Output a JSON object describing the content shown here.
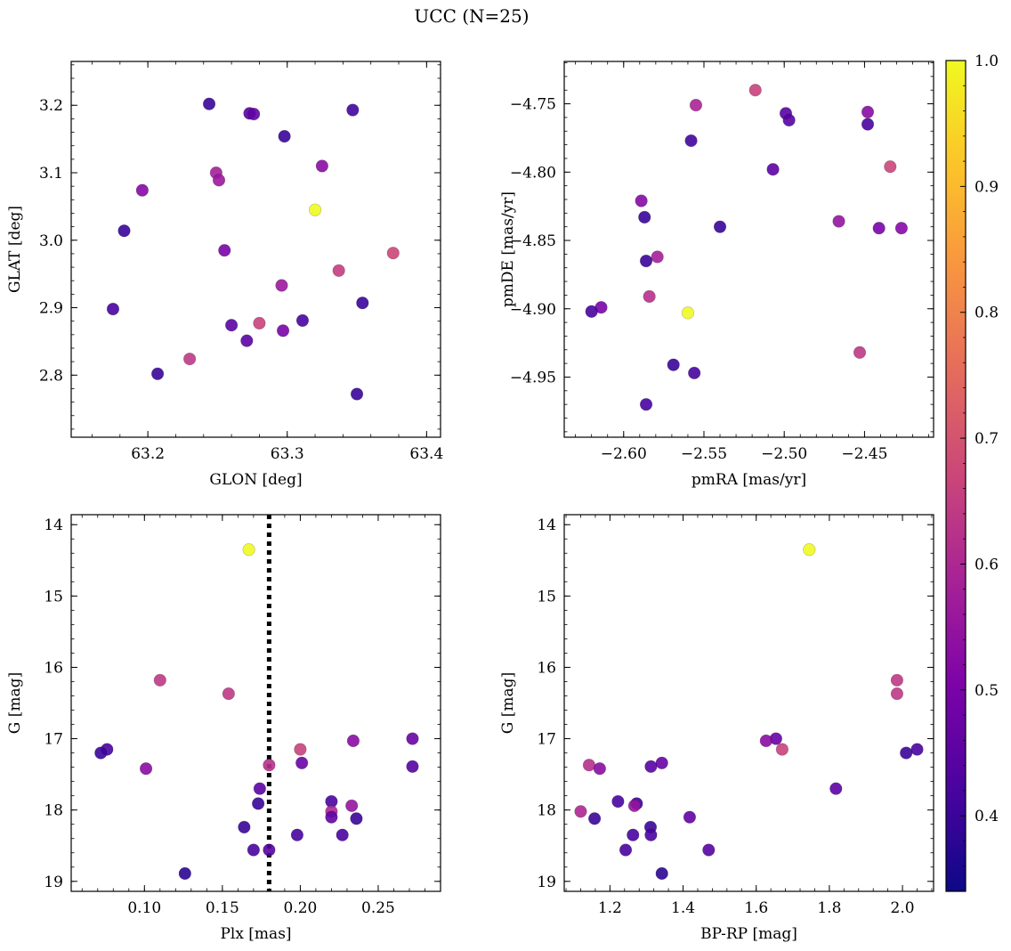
{
  "figure_title": "UCC (N=25)",
  "colorbar": {
    "range": [
      0.34,
      1.0
    ],
    "tick_labels": [
      "0.4",
      "0.5",
      "0.6",
      "0.7",
      "0.8",
      "0.9",
      "1.0"
    ],
    "ticks": [
      0.4,
      0.5,
      0.6,
      0.7,
      0.8,
      0.9,
      1.0
    ],
    "colormap": "plasma"
  },
  "chart_data": [
    {
      "type": "scatter",
      "title": "",
      "xlabel": "GLON [deg]",
      "ylabel": "GLAT [deg]",
      "xlim": [
        63.145,
        63.41
      ],
      "ylim": [
        2.708,
        3.265
      ],
      "y_inverted": false,
      "xticks": [
        63.2,
        63.3,
        63.4
      ],
      "xtick_labels": [
        "63.2",
        "63.3",
        "63.4"
      ],
      "yticks": [
        2.8,
        2.9,
        3.0,
        3.1,
        3.2
      ],
      "ytick_labels": [
        "2.8",
        "2.9",
        "3.0",
        "3.1",
        "3.2"
      ],
      "points": [
        {
          "x": 63.244,
          "y": 3.202,
          "c": 0.4
        },
        {
          "x": 63.273,
          "y": 3.188,
          "c": 0.44
        },
        {
          "x": 63.276,
          "y": 3.187,
          "c": 0.46
        },
        {
          "x": 63.347,
          "y": 3.193,
          "c": 0.41
        },
        {
          "x": 63.298,
          "y": 3.154,
          "c": 0.4
        },
        {
          "x": 63.325,
          "y": 3.11,
          "c": 0.53
        },
        {
          "x": 63.249,
          "y": 3.1,
          "c": 0.58
        },
        {
          "x": 63.251,
          "y": 3.089,
          "c": 0.56
        },
        {
          "x": 63.196,
          "y": 3.074,
          "c": 0.52
        },
        {
          "x": 63.32,
          "y": 3.045,
          "c": 1.0
        },
        {
          "x": 63.183,
          "y": 3.014,
          "c": 0.4
        },
        {
          "x": 63.255,
          "y": 2.985,
          "c": 0.5
        },
        {
          "x": 63.376,
          "y": 2.981,
          "c": 0.67
        },
        {
          "x": 63.337,
          "y": 2.955,
          "c": 0.65
        },
        {
          "x": 63.296,
          "y": 2.933,
          "c": 0.56
        },
        {
          "x": 63.354,
          "y": 2.907,
          "c": 0.4
        },
        {
          "x": 63.175,
          "y": 2.898,
          "c": 0.42
        },
        {
          "x": 63.311,
          "y": 2.881,
          "c": 0.42
        },
        {
          "x": 63.28,
          "y": 2.877,
          "c": 0.66
        },
        {
          "x": 63.26,
          "y": 2.874,
          "c": 0.45
        },
        {
          "x": 63.297,
          "y": 2.866,
          "c": 0.5
        },
        {
          "x": 63.271,
          "y": 2.851,
          "c": 0.45
        },
        {
          "x": 63.23,
          "y": 2.824,
          "c": 0.64
        },
        {
          "x": 63.207,
          "y": 2.802,
          "c": 0.4
        },
        {
          "x": 63.35,
          "y": 2.772,
          "c": 0.4
        }
      ]
    },
    {
      "type": "scatter",
      "title": "",
      "xlabel": "pmRA [mas/yr]",
      "ylabel": "pmDE [mas/yr]",
      "xlim": [
        -2.637,
        -2.407
      ],
      "ylim": [
        -4.994,
        -4.719
      ],
      "y_inverted": false,
      "xticks": [
        -2.6,
        -2.55,
        -2.5,
        -2.45
      ],
      "xtick_labels": [
        "−2.60",
        "−2.55",
        "−2.50",
        "−2.45"
      ],
      "yticks": [
        -4.95,
        -4.9,
        -4.85,
        -4.8,
        -4.75
      ],
      "ytick_labels": [
        "−4.95",
        "−4.90",
        "−4.85",
        "−4.80",
        "−4.75"
      ],
      "points": [
        {
          "x": -2.518,
          "y": -4.74,
          "c": 0.66
        },
        {
          "x": -2.555,
          "y": -4.751,
          "c": 0.59
        },
        {
          "x": -2.448,
          "y": -4.756,
          "c": 0.53
        },
        {
          "x": -2.499,
          "y": -4.757,
          "c": 0.44
        },
        {
          "x": -2.497,
          "y": -4.762,
          "c": 0.44
        },
        {
          "x": -2.448,
          "y": -4.765,
          "c": 0.42
        },
        {
          "x": -2.558,
          "y": -4.777,
          "c": 0.41
        },
        {
          "x": -2.507,
          "y": -4.798,
          "c": 0.45
        },
        {
          "x": -2.434,
          "y": -4.796,
          "c": 0.67
        },
        {
          "x": -2.589,
          "y": -4.821,
          "c": 0.52
        },
        {
          "x": -2.587,
          "y": -4.833,
          "c": 0.4
        },
        {
          "x": -2.466,
          "y": -4.836,
          "c": 0.55
        },
        {
          "x": -2.54,
          "y": -4.84,
          "c": 0.4
        },
        {
          "x": -2.441,
          "y": -4.841,
          "c": 0.5
        },
        {
          "x": -2.427,
          "y": -4.841,
          "c": 0.52
        },
        {
          "x": -2.579,
          "y": -4.862,
          "c": 0.58
        },
        {
          "x": -2.586,
          "y": -4.865,
          "c": 0.4
        },
        {
          "x": -2.584,
          "y": -4.891,
          "c": 0.62
        },
        {
          "x": -2.614,
          "y": -4.899,
          "c": 0.5
        },
        {
          "x": -2.62,
          "y": -4.902,
          "c": 0.42
        },
        {
          "x": -2.56,
          "y": -4.903,
          "c": 1.0
        },
        {
          "x": -2.453,
          "y": -4.932,
          "c": 0.64
        },
        {
          "x": -2.569,
          "y": -4.941,
          "c": 0.4
        },
        {
          "x": -2.556,
          "y": -4.947,
          "c": 0.42
        },
        {
          "x": -2.586,
          "y": -4.97,
          "c": 0.42
        }
      ]
    },
    {
      "type": "scatter",
      "title": "",
      "xlabel": "Plx [mas]",
      "ylabel": "G [mag]",
      "xlim": [
        0.053,
        0.29
      ],
      "ylim": [
        13.86,
        19.14
      ],
      "y_inverted": true,
      "xticks": [
        0.1,
        0.15,
        0.2,
        0.25
      ],
      "xtick_labels": [
        "0.10",
        "0.15",
        "0.20",
        "0.25"
      ],
      "yticks": [
        14,
        15,
        16,
        17,
        18,
        19
      ],
      "ytick_labels": [
        "14",
        "15",
        "16",
        "17",
        "18",
        "19"
      ],
      "vline": {
        "x": 0.18,
        "style": "dotted"
      },
      "points": [
        {
          "x": 0.167,
          "y": 14.35,
          "c": 1.0
        },
        {
          "x": 0.11,
          "y": 16.18,
          "c": 0.64
        },
        {
          "x": 0.154,
          "y": 16.37,
          "c": 0.64
        },
        {
          "x": 0.272,
          "y": 17.0,
          "c": 0.47
        },
        {
          "x": 0.234,
          "y": 17.03,
          "c": 0.53
        },
        {
          "x": 0.076,
          "y": 17.15,
          "c": 0.42
        },
        {
          "x": 0.2,
          "y": 17.15,
          "c": 0.66
        },
        {
          "x": 0.072,
          "y": 17.2,
          "c": 0.4
        },
        {
          "x": 0.201,
          "y": 17.34,
          "c": 0.47
        },
        {
          "x": 0.18,
          "y": 17.37,
          "c": 0.62
        },
        {
          "x": 0.272,
          "y": 17.39,
          "c": 0.44
        },
        {
          "x": 0.101,
          "y": 17.42,
          "c": 0.53
        },
        {
          "x": 0.174,
          "y": 17.7,
          "c": 0.45
        },
        {
          "x": 0.22,
          "y": 17.88,
          "c": 0.42
        },
        {
          "x": 0.173,
          "y": 17.91,
          "c": 0.4
        },
        {
          "x": 0.233,
          "y": 17.94,
          "c": 0.55
        },
        {
          "x": 0.22,
          "y": 18.02,
          "c": 0.6
        },
        {
          "x": 0.22,
          "y": 18.1,
          "c": 0.46
        },
        {
          "x": 0.236,
          "y": 18.12,
          "c": 0.4
        },
        {
          "x": 0.164,
          "y": 18.24,
          "c": 0.4
        },
        {
          "x": 0.198,
          "y": 18.35,
          "c": 0.42
        },
        {
          "x": 0.227,
          "y": 18.35,
          "c": 0.42
        },
        {
          "x": 0.17,
          "y": 18.56,
          "c": 0.42
        },
        {
          "x": 0.18,
          "y": 18.56,
          "c": 0.44
        },
        {
          "x": 0.126,
          "y": 18.89,
          "c": 0.38
        }
      ]
    },
    {
      "type": "scatter",
      "title": "",
      "xlabel": "BP-RP [mag]",
      "ylabel": "G [mag]",
      "xlim": [
        1.075,
        2.085
      ],
      "ylim": [
        13.86,
        19.14
      ],
      "y_inverted": true,
      "xticks": [
        1.2,
        1.4,
        1.6,
        1.8,
        2.0
      ],
      "xtick_labels": [
        "1.2",
        "1.4",
        "1.6",
        "1.8",
        "2.0"
      ],
      "yticks": [
        14,
        15,
        16,
        17,
        18,
        19
      ],
      "ytick_labels": [
        "14",
        "15",
        "16",
        "17",
        "18",
        "19"
      ],
      "points": [
        {
          "x": 1.745,
          "y": 14.35,
          "c": 1.0
        },
        {
          "x": 1.985,
          "y": 16.18,
          "c": 0.64
        },
        {
          "x": 1.985,
          "y": 16.37,
          "c": 0.64
        },
        {
          "x": 1.654,
          "y": 17.0,
          "c": 0.47
        },
        {
          "x": 1.627,
          "y": 17.03,
          "c": 0.53
        },
        {
          "x": 2.04,
          "y": 17.15,
          "c": 0.42
        },
        {
          "x": 1.671,
          "y": 17.15,
          "c": 0.66
        },
        {
          "x": 2.01,
          "y": 17.2,
          "c": 0.4
        },
        {
          "x": 1.342,
          "y": 17.34,
          "c": 0.47
        },
        {
          "x": 1.143,
          "y": 17.37,
          "c": 0.62
        },
        {
          "x": 1.312,
          "y": 17.39,
          "c": 0.44
        },
        {
          "x": 1.172,
          "y": 17.42,
          "c": 0.53
        },
        {
          "x": 1.818,
          "y": 17.7,
          "c": 0.45
        },
        {
          "x": 1.222,
          "y": 17.88,
          "c": 0.42
        },
        {
          "x": 1.273,
          "y": 17.91,
          "c": 0.4
        },
        {
          "x": 1.267,
          "y": 17.94,
          "c": 0.55
        },
        {
          "x": 1.12,
          "y": 18.02,
          "c": 0.6
        },
        {
          "x": 1.418,
          "y": 18.1,
          "c": 0.46
        },
        {
          "x": 1.158,
          "y": 18.12,
          "c": 0.4
        },
        {
          "x": 1.311,
          "y": 18.24,
          "c": 0.4
        },
        {
          "x": 1.263,
          "y": 18.35,
          "c": 0.42
        },
        {
          "x": 1.312,
          "y": 18.35,
          "c": 0.42
        },
        {
          "x": 1.243,
          "y": 18.56,
          "c": 0.42
        },
        {
          "x": 1.47,
          "y": 18.56,
          "c": 0.44
        },
        {
          "x": 1.342,
          "y": 18.89,
          "c": 0.38
        }
      ]
    }
  ]
}
